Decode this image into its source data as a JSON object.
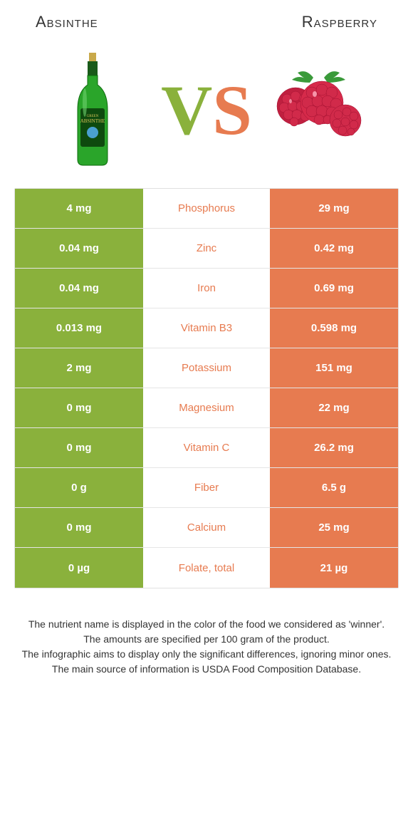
{
  "header": {
    "left_title": "Absinthe",
    "right_title": "Raspberry"
  },
  "vs": {
    "v": "V",
    "s": "S"
  },
  "colors": {
    "left": "#8ab13c",
    "right": "#e77b50",
    "row_border": "#e5e5e5",
    "text_dark": "#333333",
    "bg": "#ffffff"
  },
  "table": {
    "rows": [
      {
        "left": "4 mg",
        "label": "Phosphorus",
        "right": "29 mg",
        "winner": "right"
      },
      {
        "left": "0.04 mg",
        "label": "Zinc",
        "right": "0.42 mg",
        "winner": "right"
      },
      {
        "left": "0.04 mg",
        "label": "Iron",
        "right": "0.69 mg",
        "winner": "right"
      },
      {
        "left": "0.013 mg",
        "label": "Vitamin B3",
        "right": "0.598 mg",
        "winner": "right"
      },
      {
        "left": "2 mg",
        "label": "Potassium",
        "right": "151 mg",
        "winner": "right"
      },
      {
        "left": "0 mg",
        "label": "Magnesium",
        "right": "22 mg",
        "winner": "right"
      },
      {
        "left": "0 mg",
        "label": "Vitamin C",
        "right": "26.2 mg",
        "winner": "right"
      },
      {
        "left": "0 g",
        "label": "Fiber",
        "right": "6.5 g",
        "winner": "right"
      },
      {
        "left": "0 mg",
        "label": "Calcium",
        "right": "25 mg",
        "winner": "right"
      },
      {
        "left": "0 µg",
        "label": "Folate, total",
        "right": "21 µg",
        "winner": "right"
      }
    ]
  },
  "footnotes": [
    "The nutrient name is displayed in the color of the food we considered as 'winner'.",
    "The amounts are specified per 100 gram of the product.",
    "The infographic aims to display only the significant differences, ignoring minor ones.",
    "The main source of information is USDA Food Composition Database."
  ],
  "typography": {
    "header_fontsize": 22,
    "cell_fontsize": 15,
    "footnote_fontsize": 14,
    "vs_fontsize": 100
  }
}
